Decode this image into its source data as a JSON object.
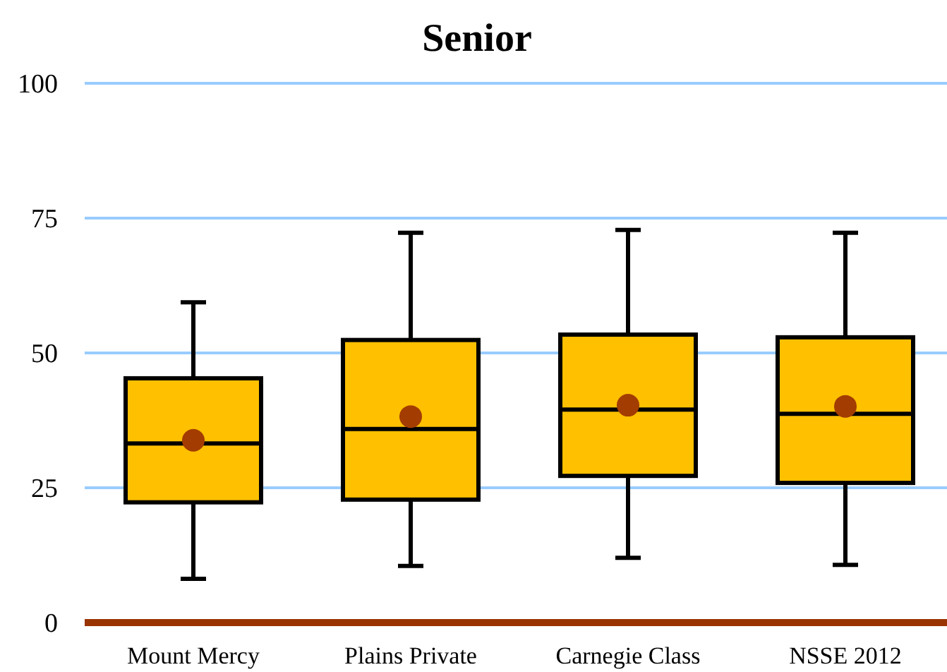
{
  "chart_data": {
    "type": "box",
    "title": "Senior",
    "categories": [
      "Mount Mercy",
      "Plains Private",
      "Carnegie Class",
      "NSSE 2012"
    ],
    "color": "#ffc000",
    "boxes": [
      {
        "low": 8.1,
        "q1": 22.3,
        "median": 33.2,
        "q3": 45.3,
        "high": 59.4
      },
      {
        "low": 10.5,
        "q1": 22.8,
        "median": 35.9,
        "q3": 52.4,
        "high": 72.3
      },
      {
        "low": 12,
        "q1": 27.2,
        "median": 39.5,
        "q3": 53.4,
        "high": 72.8
      },
      {
        "low": 10.7,
        "q1": 25.9,
        "median": 38.7,
        "q3": 52.9,
        "high": 72.3
      }
    ],
    "series": [
      {
        "type": "scatter",
        "color": "#a33c00",
        "x": [
          "Mount Mercy",
          "Plains Private",
          "Carnegie Class",
          "NSSE 2012"
        ],
        "values": [
          33.8,
          38.2,
          40.3,
          40.1
        ]
      }
    ],
    "marker": "circle",
    "ylim": [
      0,
      100
    ],
    "yticks": [
      0,
      25,
      50,
      75,
      100
    ],
    "grid": "y"
  }
}
